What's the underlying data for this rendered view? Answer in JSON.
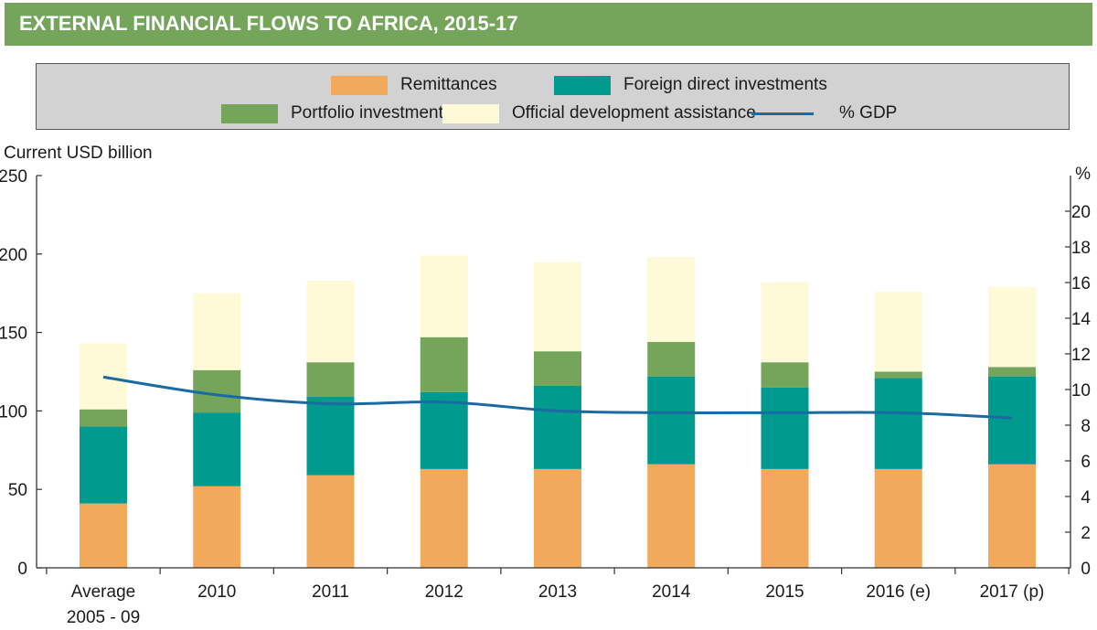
{
  "header": {
    "title": "EXTERNAL FINANCIAL FLOWS TO AFRICA, 2015-17"
  },
  "colors": {
    "header_bg": "#74a55b",
    "remittances": "#f2a95b",
    "fdi": "#009a8e",
    "portfolio": "#74a55b",
    "oda": "#fef9d7",
    "gdp_line": "#1a6aa3"
  },
  "legend": {
    "remittances": "Remittances",
    "fdi": "Foreign direct investments",
    "portfolio": "Portfolio investments",
    "oda": "Official development assistance",
    "gdp": "% GDP"
  },
  "chart_data": {
    "type": "bar",
    "stacked": true,
    "title": "EXTERNAL FINANCIAL FLOWS TO AFRICA, 2015-17",
    "ylabel": "Current USD billion",
    "y2label": "%",
    "ylim": [
      0,
      250
    ],
    "y2lim": [
      0,
      22
    ],
    "yticks": [
      0,
      50,
      100,
      150,
      200,
      250
    ],
    "y2ticks": [
      0,
      2,
      4,
      6,
      8,
      10,
      12,
      14,
      16,
      18,
      20
    ],
    "categories": [
      [
        "Average",
        "2005 - 09"
      ],
      [
        "2010"
      ],
      [
        "2011"
      ],
      [
        "2012"
      ],
      [
        "2013"
      ],
      [
        "2014"
      ],
      [
        "2015"
      ],
      [
        "2016 (e)"
      ],
      [
        "2017 (p)"
      ]
    ],
    "series": [
      {
        "name": "Remittances",
        "key": "remittances",
        "values": [
          41,
          52,
          59,
          63,
          63,
          66,
          63,
          63,
          66
        ]
      },
      {
        "name": "Foreign direct investments",
        "key": "fdi",
        "values": [
          49,
          47,
          50,
          49,
          53,
          56,
          52,
          58,
          56
        ]
      },
      {
        "name": "Portfolio investments",
        "key": "portfolio",
        "values": [
          11,
          27,
          22,
          35,
          22,
          22,
          16,
          4,
          6
        ]
      },
      {
        "name": "Official development assistance",
        "key": "oda",
        "values": [
          42,
          49,
          52,
          52,
          57,
          54,
          51,
          51,
          51
        ]
      }
    ],
    "line": {
      "name": "% GDP",
      "axis": "right",
      "values": [
        10.7,
        9.7,
        9.2,
        9.3,
        8.8,
        8.7,
        8.7,
        8.7,
        8.4
      ]
    }
  }
}
